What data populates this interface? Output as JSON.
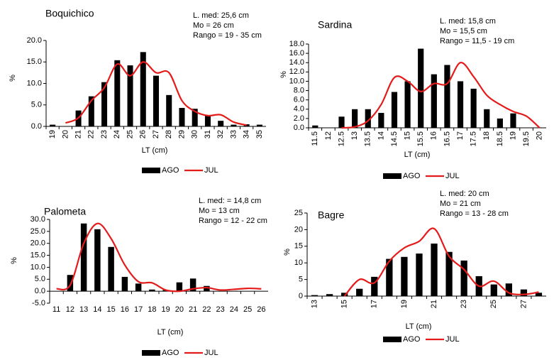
{
  "chart_data": [
    {
      "type": "bar",
      "title": "Boquichico",
      "annotations": [
        "L. med:  25,6 cm",
        "Mo =  26  cm",
        "Rango =  19 - 35 cm"
      ],
      "x_label": "LT (cm)",
      "y_label": "%",
      "categories": [
        "19",
        "20",
        "21",
        "22",
        "23",
        "24",
        "25",
        "26",
        "27",
        "28",
        "29",
        "30",
        "31",
        "32",
        "33",
        "34",
        "35"
      ],
      "series": [
        {
          "name": "AGO",
          "type": "bar",
          "color": "#000000",
          "values": [
            0.4,
            0,
            3.7,
            7,
            10.3,
            15.4,
            14.2,
            17.3,
            11.8,
            7.3,
            4.3,
            4.1,
            2.5,
            1.3,
            0.4,
            0.5,
            0.4
          ]
        },
        {
          "name": "JUL",
          "type": "line",
          "color": "#e41b1b",
          "values": [
            null,
            0.8,
            2,
            6,
            9,
            14.5,
            11.8,
            15,
            12.5,
            12.5,
            6,
            3.5,
            2.5,
            2.7,
            1,
            0.3,
            null
          ]
        }
      ],
      "ylim": [
        0,
        20
      ],
      "yticks": [
        {
          "value": 0,
          "label": "0.0"
        },
        {
          "value": 5,
          "label": "5.0"
        },
        {
          "value": 10,
          "label": "10.0"
        },
        {
          "value": 15,
          "label": "15.0"
        },
        {
          "value": 20,
          "label": "20.0"
        }
      ]
    },
    {
      "type": "bar",
      "title": "Sardina",
      "annotations": [
        "L. med:  15,8 cm",
        "Mo =  15,5 cm",
        "Rango =  11,5 - 19 cm"
      ],
      "x_label": "LT (cm)",
      "y_label": "%",
      "categories": [
        "11.5",
        "12",
        "12.5",
        "13",
        "13.5",
        "14",
        "14.5",
        "15",
        "15.5",
        "16",
        "16.5",
        "17",
        "17.5",
        "18",
        "18.5",
        "19",
        "19.5",
        "20"
      ],
      "series": [
        {
          "name": "AGO",
          "type": "bar",
          "color": "#000000",
          "values": [
            0.5,
            0,
            2.4,
            4,
            4,
            3.2,
            7.7,
            10,
            17,
            11.5,
            13.5,
            10,
            8.4,
            4,
            2,
            3.1,
            0,
            0
          ]
        },
        {
          "name": "JUL",
          "type": "line",
          "color": "#e41b1b",
          "values": [
            null,
            null,
            0,
            0.2,
            1.5,
            5,
            10.8,
            10,
            7.8,
            9.5,
            9.5,
            14,
            11,
            7,
            5,
            3.5,
            2.5,
            0
          ]
        }
      ],
      "ylim": [
        0,
        18
      ],
      "yticks": [
        {
          "value": 0,
          "label": "0.0"
        },
        {
          "value": 2,
          "label": "2.0"
        },
        {
          "value": 4,
          "label": "4.0"
        },
        {
          "value": 6,
          "label": "6.0"
        },
        {
          "value": 8,
          "label": "8.0"
        },
        {
          "value": 10,
          "label": "10.0"
        },
        {
          "value": 12,
          "label": "12.0"
        },
        {
          "value": 14,
          "label": "14.0"
        },
        {
          "value": 16,
          "label": "16.0"
        },
        {
          "value": 18,
          "label": "18.0"
        }
      ]
    },
    {
      "type": "bar",
      "title": "Palometa",
      "annotations": [
        "L. med: = 14,8 cm",
        "Mo =  13 cm",
        "Rango = 12 - 22 cm"
      ],
      "x_label": "LT (cm)",
      "y_label": "%",
      "categories": [
        "11",
        "12",
        "13",
        "14",
        "15",
        "16",
        "17",
        "18",
        "19",
        "20",
        "21",
        "22",
        "23",
        "24",
        "25",
        "26"
      ],
      "series": [
        {
          "name": "AGO",
          "type": "bar",
          "color": "#000000",
          "values": [
            0,
            6.8,
            28.3,
            25.9,
            18.5,
            6,
            3.2,
            0.7,
            0.5,
            3.7,
            5.3,
            2.2,
            0,
            0,
            0,
            0
          ]
        },
        {
          "name": "JUL",
          "type": "line",
          "color": "#e41b1b",
          "values": [
            1,
            2.5,
            20,
            28.3,
            22,
            11,
            4,
            3.5,
            0.5,
            0,
            1,
            1.5,
            0.5,
            0.8,
            1.2,
            1
          ]
        }
      ],
      "ylim": [
        -5,
        30
      ],
      "yticks": [
        {
          "value": -5,
          "label": "-5.0"
        },
        {
          "value": 0,
          "label": "0.0"
        },
        {
          "value": 5,
          "label": "5.0"
        },
        {
          "value": 10,
          "label": "10.0"
        },
        {
          "value": 15,
          "label": "15.0"
        },
        {
          "value": 20,
          "label": "20.0"
        },
        {
          "value": 25,
          "label": "25.0"
        },
        {
          "value": 30,
          "label": "30.0"
        }
      ]
    },
    {
      "type": "bar",
      "title": "Bagre",
      "annotations": [
        "L. med:  20 cm",
        "Mo =  21 cm",
        "Rango = 13 - 28 cm"
      ],
      "x_label": "LT (cm)",
      "y_label": "%",
      "categories": [
        "13",
        null,
        "15",
        null,
        "17",
        null,
        "19",
        null,
        "21",
        null,
        "23",
        null,
        "25",
        null,
        "27",
        null
      ],
      "series": [
        {
          "name": "AGO",
          "type": "bar",
          "color": "#000000",
          "values": [
            0.3,
            0.6,
            1,
            2.2,
            5.8,
            11.2,
            11.8,
            12.8,
            15.8,
            13.3,
            10.7,
            6,
            3.5,
            3.8,
            2,
            1
          ]
        },
        {
          "name": "JUL",
          "type": "line",
          "color": "#e41b1b",
          "values": [
            null,
            null,
            0,
            5,
            4,
            10.5,
            14.5,
            16.5,
            20.3,
            12,
            8,
            3,
            4.5,
            1,
            0.5,
            1.2
          ]
        }
      ],
      "ylim": [
        0,
        25
      ],
      "yticks": [
        0,
        5,
        10,
        15,
        20,
        25
      ]
    }
  ]
}
